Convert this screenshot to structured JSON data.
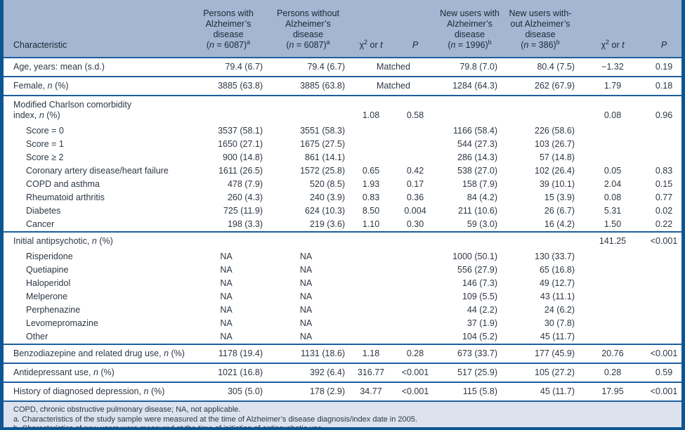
{
  "colors": {
    "header_bg": "#a3b7d2",
    "footer_bg": "#dce2ee",
    "frame_border": "#0d5693",
    "rule": "#1c5f9e",
    "text": "#2d3743"
  },
  "table": {
    "header": {
      "characteristic": "Characteristic",
      "groups": [
        {
          "lines": [
            "Persons with",
            "Alzheimer’s",
            "disease"
          ],
          "n": {
            "pre": "(",
            "sym": "n",
            "post": " = 6087)",
            "sup": "a"
          }
        },
        {
          "lines": [
            "Persons without",
            "Alzheimer’s",
            "disease"
          ],
          "n": {
            "pre": "(",
            "sym": "n",
            "post": " = 6087)",
            "sup": "a"
          }
        },
        {
          "lines": [
            "New users with",
            "Alzheimer’s",
            "disease"
          ],
          "n": {
            "pre": "(",
            "sym": "n",
            "post": " = 1996)",
            "sup": "b"
          }
        },
        {
          "lines": [
            "New users with-",
            "out Alzheimer’s",
            "disease"
          ],
          "n": {
            "pre": "(",
            "sym": "n",
            "post": " = 386)",
            "sup": "b"
          }
        }
      ],
      "stat": {
        "chi": "χ",
        "exp": "2",
        "mid": " or ",
        "t": "t"
      },
      "p": "P"
    },
    "suffix_n_pct": {
      "pre": ", ",
      "sym": "n",
      "post": " (%)"
    },
    "rows": [
      {
        "label": "Age, years: mean (s.d.)",
        "pad": true,
        "matched": true,
        "cells": {
          "c1": "79.4 (6.7)",
          "c2": "79.4 (6.7)",
          "s1": "Matched",
          "c3": "79.8 (7.0)",
          "c4": "80.4 (7.5)",
          "s2": "−1.32",
          "p2": "0.19"
        }
      },
      {
        "label": "Female",
        "n_pct": true,
        "sep": true,
        "matched": true,
        "cells": {
          "c1": "3885 (63.8)",
          "c2": "3885 (63.8)",
          "s1": "Matched",
          "c3": "1284 (64.3)",
          "c4": "262 (67.9)",
          "s2": "1.79",
          "p2": "0.18"
        }
      },
      {
        "label": "Modified Charlson comorbidity",
        "label2": "index",
        "n_pct_line2": true,
        "sep": true,
        "cells": {
          "s1": "1.08",
          "p1": "0.58",
          "s2": "0.08",
          "p2": "0.96"
        }
      },
      {
        "label": "Score = 0",
        "indent": true,
        "cells": {
          "c1": "3537 (58.1)",
          "c2": "3551 (58.3)",
          "c3": "1166 (58.4)",
          "c4": "226 (58.6)"
        }
      },
      {
        "label": "Score = 1",
        "indent": true,
        "cells": {
          "c1": "1650 (27.1)",
          "c2": "1675 (27.5)",
          "c3": "544 (27.3)",
          "c4": "103 (26.7)"
        }
      },
      {
        "label": "Score ≥ 2",
        "indent": true,
        "cells": {
          "c1": "900 (14.8)",
          "c2": "861 (14.1)",
          "c3": "286 (14.3)",
          "c4": "57 (14.8)"
        }
      },
      {
        "label": "Coronary artery disease/heart failure",
        "indent": true,
        "cells": {
          "c1": "1611 (26.5)",
          "c2": "1572 (25.8)",
          "s1": "0.65",
          "p1": "0.42",
          "c3": "538 (27.0)",
          "c4": "102 (26.4)",
          "s2": "0.05",
          "p2": "0.83"
        }
      },
      {
        "label": "COPD and asthma",
        "indent": true,
        "cells": {
          "c1": "478 (7.9)",
          "c2": "520 (8.5)",
          "s1": "1.93",
          "p1": "0.17",
          "c3": "158 (7.9)",
          "c4": "39 (10.1)",
          "s2": "2.04",
          "p2": "0.15"
        }
      },
      {
        "label": "Rheumatoid arthritis",
        "indent": true,
        "cells": {
          "c1": "260 (4.3)",
          "c2": "240 (3.9)",
          "s1": "0.83",
          "p1": "0.36",
          "c3": "84 (4.2)",
          "c4": "15 (3.9)",
          "s2": "0.08",
          "p2": "0.77"
        }
      },
      {
        "label": "Diabetes",
        "indent": true,
        "cells": {
          "c1": "725 (11.9)",
          "c2": "624 (10.3)",
          "s1": "8.50",
          "p1": "0.004",
          "c3": "211 (10.6)",
          "c4": "26 (6.7)",
          "s2": "5.31",
          "p2": "0.02"
        }
      },
      {
        "label": "Cancer",
        "indent": true,
        "cells": {
          "c1": "198 (3.3)",
          "c2": "219 (3.6)",
          "s1": "1.10",
          "p1": "0.30",
          "c3": "59 (3.0)",
          "c4": "16 (4.2)",
          "s2": "1.50",
          "p2": "0.22"
        }
      },
      {
        "label": "Initial antipsychotic",
        "n_pct": true,
        "sep": true,
        "cells": {
          "s2": "141.25",
          "p2": "<0.001"
        }
      },
      {
        "label": "Risperidone",
        "indent": true,
        "cells": {
          "c1": "NA",
          "c2": "NA",
          "c3": "1000 (50.1)",
          "c4": "130 (33.7)"
        }
      },
      {
        "label": "Quetiapine",
        "indent": true,
        "cells": {
          "c1": "NA",
          "c2": "NA",
          "c3": "556 (27.9)",
          "c4": "65 (16.8)"
        }
      },
      {
        "label": "Haloperidol",
        "indent": true,
        "cells": {
          "c1": "NA",
          "c2": "NA",
          "c3": "146 (7.3)",
          "c4": "49 (12.7)"
        }
      },
      {
        "label": "Melperone",
        "indent": true,
        "cells": {
          "c1": "NA",
          "c2": "NA",
          "c3": "109 (5.5)",
          "c4": "43 (11.1)"
        }
      },
      {
        "label": "Perphenazine",
        "indent": true,
        "cells": {
          "c1": "NA",
          "c2": "NA",
          "c3": "44 (2.2)",
          "c4": "24 (6.2)"
        }
      },
      {
        "label": "Levomepromazine",
        "indent": true,
        "cells": {
          "c1": "NA",
          "c2": "NA",
          "c3": "37 (1.9)",
          "c4": "30 (7.8)"
        }
      },
      {
        "label": "Other",
        "indent": true,
        "cells": {
          "c1": "NA",
          "c2": "NA",
          "c3": "104 (5.2)",
          "c4": "45 (11.7)"
        }
      },
      {
        "label": "Benzodiazepine and related drug use",
        "n_pct": true,
        "sep": true,
        "cells": {
          "c1": "1178 (19.4)",
          "c2": "1131 (18.6)",
          "s1": "1.18",
          "p1": "0.28",
          "c3": "673 (33.7)",
          "c4": "177 (45.9)",
          "s2": "20.76",
          "p2": "<0.001"
        }
      },
      {
        "label": "Antidepressant use",
        "n_pct": true,
        "sep": true,
        "cells": {
          "c1": "1021 (16.8)",
          "c2": "392 (6.4)",
          "s1": "316.77",
          "p1": "<0.001",
          "c3": "517 (25.9)",
          "c4": "105 (27.2)",
          "s2": "0.28",
          "p2": "0.59"
        }
      },
      {
        "label": "History of diagnosed depression",
        "n_pct": true,
        "sep": true,
        "cells": {
          "c1": "305 (5.0)",
          "c2": "178 (2.9)",
          "s1": "34.77",
          "p1": "<0.001",
          "c3": "115 (5.8)",
          "c4": "45 (11.7)",
          "s2": "17.95",
          "p2": "<0.001"
        }
      }
    ]
  },
  "footnotes": [
    "COPD, chronic obstructive pulmonary disease; NA, not applicable.",
    "a. Characteristics of the study sample were measured at the time of Alzheimer’s disease diagnosis/index date in 2005.",
    "b. Characteristics of new users were measured at the time of initiation of antipsychotic use."
  ]
}
